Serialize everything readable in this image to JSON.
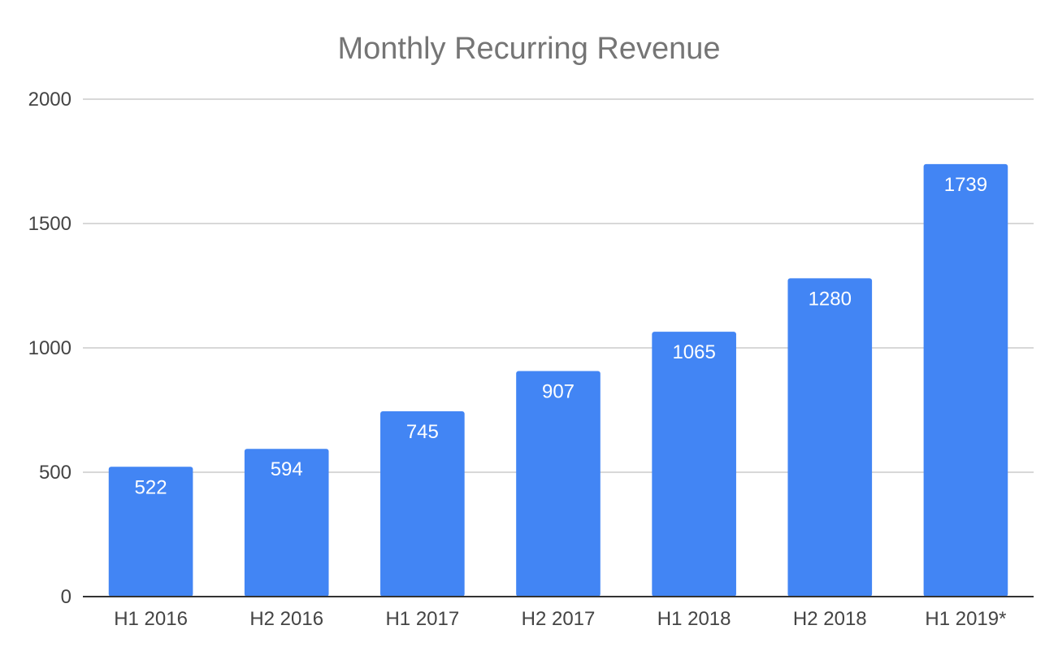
{
  "chart_data": {
    "type": "bar",
    "title": "Monthly Recurring Revenue",
    "xlabel": "",
    "ylabel": "",
    "categories": [
      "H1 2016",
      "H2 2016",
      "H1 2017",
      "H2 2017",
      "H1 2018",
      "H2 2018",
      "H1 2019*"
    ],
    "series": [
      {
        "name": "Monthly Recurring Revenue",
        "values": [
          522,
          594,
          745,
          907,
          1065,
          1280,
          1739
        ],
        "color": "#4285f4"
      }
    ],
    "ylim": [
      0,
      2000
    ],
    "yticks": [
      0,
      500,
      1000,
      1500,
      2000
    ],
    "ytick_labels": [
      "0",
      "500",
      "1000",
      "1500",
      "2000"
    ],
    "grid": true,
    "legend": "none",
    "data_labels": true
  }
}
